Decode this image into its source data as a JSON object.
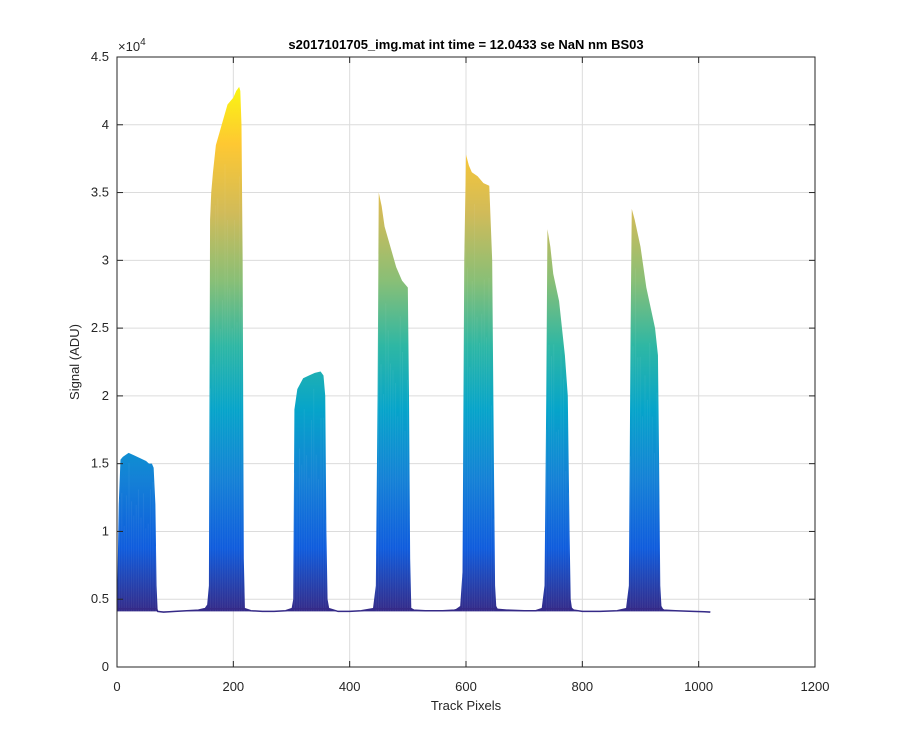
{
  "chart_data": {
    "type": "area",
    "title": "s2017101705_img.mat int time = 12.0433 se  NaN nm BS03",
    "xlabel": "Track Pixels",
    "ylabel": "Signal (ADU)",
    "xlim": [
      0,
      1200
    ],
    "ylim": [
      0,
      45000
    ],
    "x_ticks": [
      0,
      200,
      400,
      600,
      800,
      1000,
      1200
    ],
    "y_ticks": [
      0,
      0.5,
      1,
      1.5,
      2,
      2.5,
      3,
      3.5,
      4,
      4.5
    ],
    "y_exponent_label": "×10",
    "y_exponent_power": "4",
    "grid": true,
    "colormap": "parula",
    "baseline": 4100,
    "description_of_series": "waterfall of many spectra; envelope of max signal per track pixel",
    "envelope": {
      "x": [
        0,
        3,
        6,
        10,
        20,
        30,
        40,
        50,
        55,
        60,
        63,
        66,
        68,
        70,
        80,
        100,
        120,
        140,
        150,
        155,
        158,
        160,
        162,
        165,
        170,
        180,
        190,
        200,
        205,
        210,
        212,
        214,
        216,
        218,
        220,
        230,
        250,
        270,
        290,
        300,
        303,
        305,
        310,
        320,
        330,
        340,
        350,
        355,
        358,
        360,
        362,
        365,
        380,
        400,
        420,
        440,
        445,
        448,
        450,
        455,
        460,
        470,
        480,
        490,
        500,
        502,
        504,
        506,
        510,
        530,
        560,
        580,
        590,
        594,
        597,
        600,
        605,
        610,
        620,
        630,
        640,
        645,
        648,
        650,
        652,
        655,
        670,
        700,
        720,
        730,
        735,
        738,
        740,
        745,
        750,
        760,
        770,
        775,
        778,
        780,
        782,
        785,
        800,
        830,
        860,
        875,
        880,
        883,
        885,
        890,
        900,
        910,
        920,
        925,
        930,
        932,
        934,
        936,
        940,
        960,
        990,
        1010,
        1020
      ],
      "y": [
        4200,
        12000,
        15300,
        15500,
        15800,
        15600,
        15400,
        15200,
        15000,
        15000,
        14700,
        12000,
        6000,
        4100,
        4050,
        4100,
        4150,
        4200,
        4300,
        4600,
        6000,
        33000,
        35000,
        36500,
        38500,
        40000,
        41500,
        42000,
        42500,
        42800,
        42500,
        40000,
        30000,
        8000,
        4300,
        4150,
        4100,
        4100,
        4150,
        4300,
        5000,
        19000,
        20500,
        21300,
        21500,
        21700,
        21800,
        21500,
        20000,
        10000,
        5000,
        4300,
        4100,
        4100,
        4150,
        4300,
        6000,
        20000,
        35000,
        34000,
        32500,
        31000,
        29500,
        28500,
        28000,
        20000,
        8000,
        4300,
        4200,
        4150,
        4150,
        4200,
        4500,
        7000,
        30000,
        37800,
        37000,
        36500,
        36200,
        35700,
        35500,
        30000,
        15000,
        6000,
        4500,
        4250,
        4200,
        4150,
        4150,
        4300,
        6000,
        20000,
        32300,
        31000,
        29000,
        27000,
        23000,
        20000,
        10000,
        5000,
        4400,
        4200,
        4100,
        4100,
        4150,
        4300,
        6000,
        25000,
        33800,
        33000,
        31000,
        28000,
        26000,
        25000,
        23000,
        15000,
        6000,
        4500,
        4200,
        4150,
        4100,
        4080,
        4050
      ]
    }
  }
}
